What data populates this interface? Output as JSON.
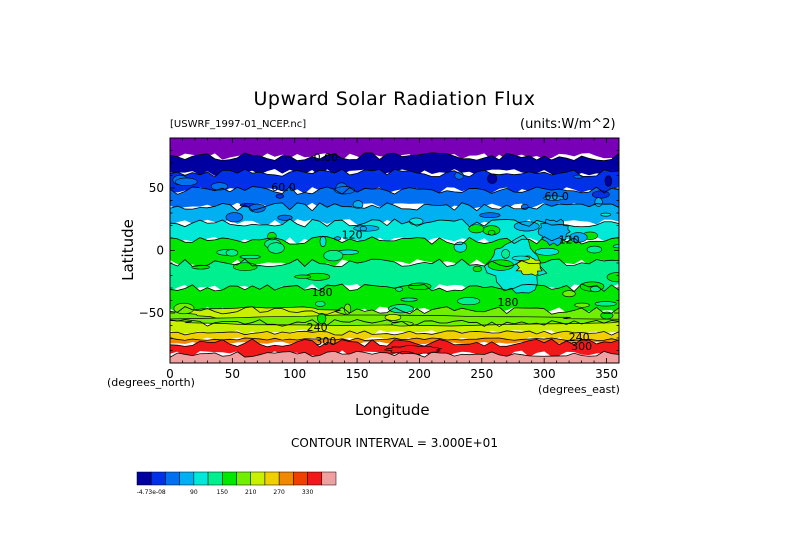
{
  "chart_data": {
    "type": "heatmap",
    "title": "Upward Solar Radiation Flux",
    "dataset_label": "[USWRF_1997-01_NCEP.nc]",
    "units_label": "(units:W/m^2)",
    "xlabel": "Longitude",
    "ylabel": "Latitude",
    "x_unit_label": "(degrees_east)",
    "y_unit_label": "(degrees_north)",
    "xlim": [
      0,
      360
    ],
    "ylim": [
      -90,
      90
    ],
    "x_ticks": [
      0,
      50,
      100,
      150,
      200,
      250,
      300,
      350
    ],
    "y_ticks": [
      50,
      0,
      -50
    ],
    "contour_interval_label": "CONTOUR INTERVAL = 3.000E+01",
    "contour_labels": [
      {
        "text": "0.00",
        "lon": 125,
        "lat": 74
      },
      {
        "text": "60.0",
        "lon": 91,
        "lat": 50
      },
      {
        "text": "60.0",
        "lon": 310,
        "lat": 43
      },
      {
        "text": "120",
        "lon": 146,
        "lat": 12
      },
      {
        "text": "120",
        "lon": 320,
        "lat": 8
      },
      {
        "text": "180",
        "lon": 122,
        "lat": -34
      },
      {
        "text": "180",
        "lon": 271,
        "lat": -42
      },
      {
        "text": "240",
        "lon": 118,
        "lat": -62
      },
      {
        "text": "300",
        "lon": 125,
        "lat": -73
      },
      {
        "text": "240",
        "lon": 328,
        "lat": -70
      },
      {
        "text": "300",
        "lon": 330,
        "lat": -77
      }
    ],
    "colorbar": {
      "tick_labels": [
        "-4.73e-08",
        "90",
        "150",
        "210",
        "270",
        "330"
      ],
      "colors": [
        "#0000a0",
        "#0030e8",
        "#0070f0",
        "#00b0f0",
        "#00e8d8",
        "#00f090",
        "#00e800",
        "#70f000",
        "#c8f000",
        "#f0d000",
        "#f08800",
        "#f04000",
        "#f01818",
        "#f0a0a0"
      ]
    },
    "latitude_bands": [
      {
        "lat": [
          75,
          90
        ],
        "value": 0,
        "color": "#7a00b8"
      },
      {
        "lat": [
          62,
          75
        ],
        "value": 15,
        "color": "#0000a0"
      },
      {
        "lat": [
          48,
          62
        ],
        "value": 45,
        "color": "#0030e8"
      },
      {
        "lat": [
          35,
          48
        ],
        "value": 75,
        "color": "#0070f0"
      },
      {
        "lat": [
          22,
          35
        ],
        "value": 105,
        "color": "#00b0f0"
      },
      {
        "lat": [
          8,
          22
        ],
        "value": 135,
        "color": "#00e8d8"
      },
      {
        "lat": [
          -10,
          8
        ],
        "value": 165,
        "color": "#00e800"
      },
      {
        "lat": [
          -30,
          -10
        ],
        "value": 165,
        "color": "#00f090"
      },
      {
        "lat": [
          -48,
          -30
        ],
        "value": 165,
        "color": "#00e800"
      },
      {
        "lat": [
          -58,
          -48
        ],
        "value": 195,
        "color": "#70f000"
      },
      {
        "lat": [
          -66,
          -58
        ],
        "value": 225,
        "color": "#c8f000"
      },
      {
        "lat": [
          -71,
          -66
        ],
        "value": 255,
        "color": "#f0d000"
      },
      {
        "lat": [
          -74,
          -71
        ],
        "value": 285,
        "color": "#f08800"
      },
      {
        "lat": [
          -83,
          -74
        ],
        "value": 315,
        "color": "#f01818"
      },
      {
        "lat": [
          -90,
          -83
        ],
        "value": 345,
        "color": "#f0a0a0"
      }
    ],
    "regional_features": [
      {
        "lon": [
          255,
          300
        ],
        "lat": [
          -35,
          10
        ],
        "value": 120,
        "color": "#00e8d8"
      },
      {
        "lon": [
          295,
          320
        ],
        "lat": [
          5,
          25
        ],
        "value": 105,
        "color": "#00b0f0"
      },
      {
        "lon": [
          278,
          298
        ],
        "lat": [
          -20,
          -5
        ],
        "value": 225,
        "color": "#c8f000"
      },
      {
        "lon": [
          15,
          140
        ],
        "lat": [
          -55,
          -45
        ],
        "value": 225,
        "color": "#c8f000"
      },
      {
        "lon": [
          175,
          215
        ],
        "lat": [
          -83,
          -76
        ],
        "value": 315,
        "color": "#f01818"
      },
      {
        "lon": [
          0,
          360
        ],
        "lat": [
          -60,
          -52
        ],
        "value": 195,
        "color": "#70f000"
      }
    ]
  }
}
